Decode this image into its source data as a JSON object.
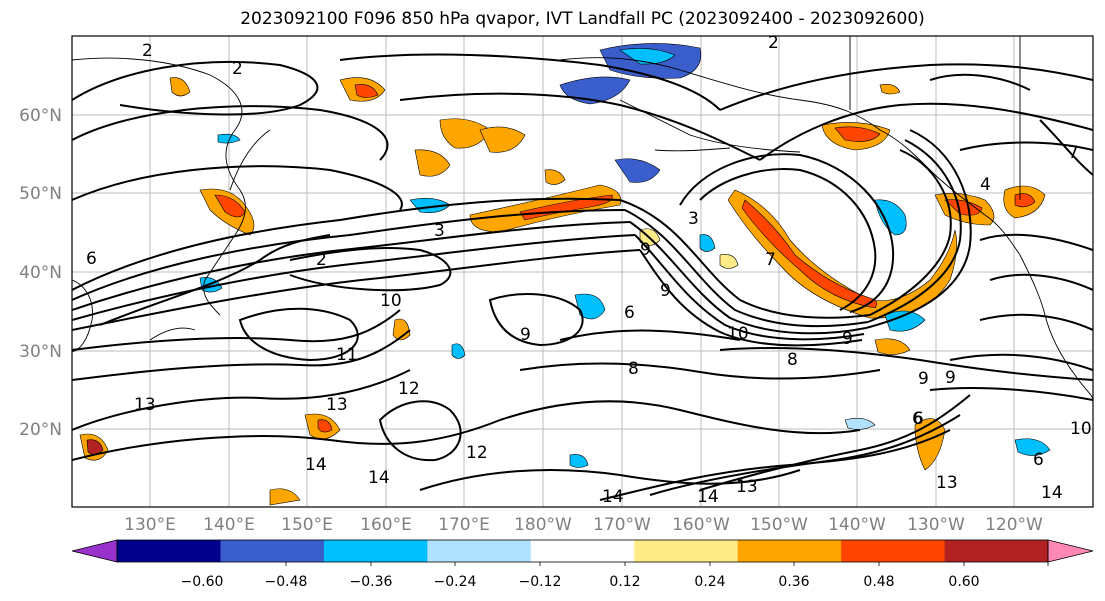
{
  "title": "2023092100 F096 850 hPa qvapor, IVT Landfall PC (2023092400 - 2023092600)",
  "lat_labels": [
    "60°N",
    "50°N",
    "40°N",
    "30°N",
    "20°N"
  ],
  "lon_labels": [
    "130°E",
    "140°E",
    "150°E",
    "160°E",
    "170°E",
    "180°W",
    "170°W",
    "160°W",
    "150°W",
    "140°W",
    "130°W",
    "120°W"
  ],
  "colorbar": {
    "tick_labels": [
      "−0.60",
      "−0.48",
      "−0.36",
      "−0.24",
      "−0.12",
      "0.12",
      "0.24",
      "0.36",
      "0.48",
      "0.60"
    ],
    "colors": [
      "#9932cc",
      "#00008b",
      "#3a5fcd",
      "#00bfff",
      "#b0e2ff",
      "#ffffff",
      "#ffeb88",
      "#ffa500",
      "#ff4500",
      "#b22222",
      "#ff88b4"
    ]
  },
  "contour_labels": [
    "2",
    "2",
    "2",
    "3",
    "3",
    "2",
    "4",
    "6",
    "6",
    "6",
    "9",
    "9",
    "9",
    "9",
    "9",
    "10",
    "10",
    "10",
    "11",
    "12",
    "12",
    "13",
    "13",
    "14",
    "14",
    "14",
    "14",
    "14",
    "13",
    "13",
    "6",
    "8",
    "8",
    "7",
    "7",
    "6",
    "9"
  ]
}
